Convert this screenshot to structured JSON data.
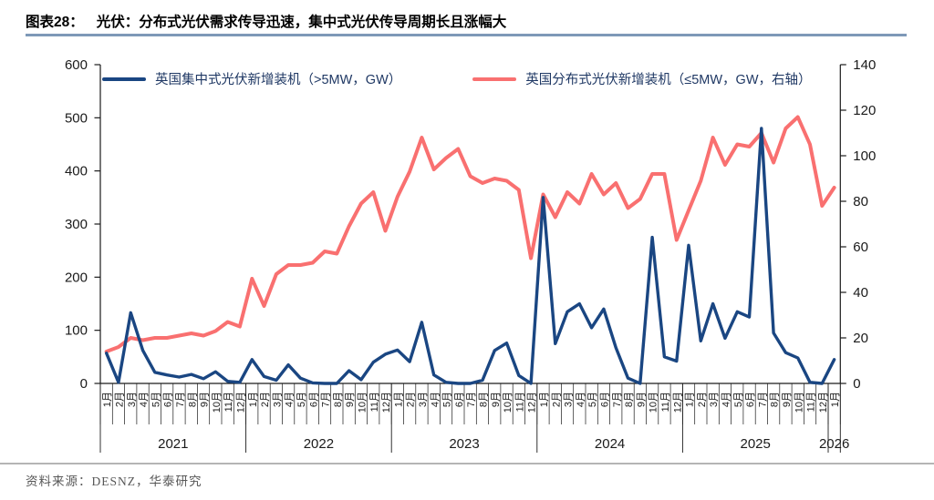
{
  "title": {
    "prefix": "图表28：",
    "text": "光伏：分布式光伏需求传导迅速，集中式光伏传导周期长且涨幅大"
  },
  "source": {
    "text": "资料来源：DESNZ，华泰研究"
  },
  "chart_data": {
    "type": "line",
    "x_axis": {
      "month_suffix": "月",
      "years": [
        {
          "label": "2021",
          "months": 12
        },
        {
          "label": "2022",
          "months": 12
        },
        {
          "label": "2023",
          "months": 12
        },
        {
          "label": "2024",
          "months": 12
        },
        {
          "label": "2025",
          "months": 12
        },
        {
          "label": "2026",
          "months": 1
        }
      ]
    },
    "left_axis": {
      "min": 0,
      "max": 600,
      "step": 100,
      "tick_labels": [
        "600",
        "500",
        "400",
        "300",
        "200",
        "100",
        "0"
      ]
    },
    "right_axis": {
      "min": 0,
      "max": 140,
      "step": 20,
      "tick_labels": [
        "140",
        "120",
        "100",
        "80",
        "60",
        "40",
        "20",
        "0"
      ]
    },
    "grid": false,
    "legend_position": "top",
    "series": [
      {
        "id": "centralized",
        "name": "英国集中式光伏新增装机（>5MW，GW）",
        "axis": "left",
        "color": "#1A4682",
        "values": [
          57,
          2,
          133,
          62,
          21,
          16,
          12,
          17,
          9,
          22,
          4,
          2,
          45,
          13,
          6,
          35,
          10,
          1,
          0,
          0,
          24,
          7,
          40,
          55,
          63,
          41,
          115,
          16,
          2,
          0,
          0,
          6,
          62,
          76,
          15,
          0,
          350,
          75,
          135,
          150,
          105,
          140,
          67,
          10,
          0,
          275,
          50,
          42,
          260,
          80,
          150,
          85,
          135,
          125,
          480,
          95,
          58,
          48,
          2,
          0,
          45
        ]
      },
      {
        "id": "distributed",
        "name": "英国分布式光伏新增装机（≤5MW，GW，右轴）",
        "axis": "right",
        "color": "#F97070",
        "values": [
          14,
          16,
          20,
          19,
          20,
          20,
          21,
          22,
          21,
          23,
          27,
          25,
          46,
          34,
          48,
          52,
          52,
          53,
          58,
          57,
          69,
          79,
          84,
          67,
          82,
          93,
          108,
          94,
          99,
          103,
          91,
          88,
          90,
          89,
          85,
          55,
          83,
          73,
          84,
          79,
          92,
          83,
          88,
          77,
          81,
          92,
          92,
          63,
          76,
          89,
          108,
          96,
          105,
          104,
          110,
          97,
          112,
          117,
          105,
          78,
          86
        ]
      }
    ]
  }
}
